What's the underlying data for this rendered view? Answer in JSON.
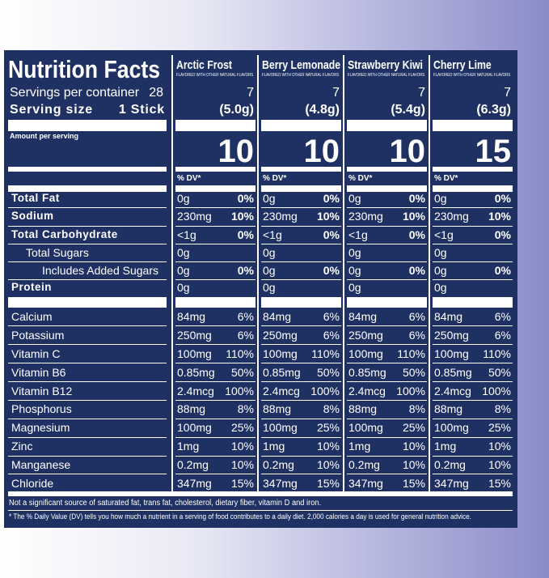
{
  "title": "Nutrition Facts",
  "servings_label": "Servings per container",
  "servings_value": "28",
  "serving_size_label": "Serving size",
  "serving_size_value": "1 Stick",
  "amount_per_serving": "Amount per serving",
  "dv_header": "% DV*",
  "products": [
    {
      "name": "Arctic Frost",
      "note": "FLAVORED WITH OTHER NATURAL FLAVORS",
      "servings": "7",
      "serving_size": "(5.0g)",
      "calories": "10"
    },
    {
      "name": "Berry Lemonade",
      "note": "FLAVORED WITH OTHER NATURAL FLAVORS",
      "servings": "7",
      "serving_size": "(4.8g)",
      "calories": "10"
    },
    {
      "name": "Strawberry Kiwi",
      "note": "FLAVORED WITH OTHER NATURAL FLAVORS",
      "servings": "7",
      "serving_size": "(5.4g)",
      "calories": "10"
    },
    {
      "name": "Cherry Lime",
      "note": "FLAVORED WITH OTHER NATURAL FLAVORS",
      "servings": "7",
      "serving_size": "(6.3g)",
      "calories": "15"
    }
  ],
  "nutrients": [
    {
      "name": "Total Fat",
      "amounts": [
        "0g",
        "0g",
        "0g",
        "0g"
      ],
      "dv": [
        "0%",
        "0%",
        "0%",
        "0%"
      ]
    },
    {
      "name": "Sodium",
      "amounts": [
        "230mg",
        "230mg",
        "230mg",
        "230mg"
      ],
      "dv": [
        "10%",
        "10%",
        "10%",
        "10%"
      ]
    },
    {
      "name": "Total Carbohydrate",
      "amounts": [
        "<1g",
        "<1g",
        "<1g",
        "<1g"
      ],
      "dv": [
        "0%",
        "0%",
        "0%",
        "0%"
      ]
    },
    {
      "name": "Total Sugars",
      "amounts": [
        "0g",
        "0g",
        "0g",
        "0g"
      ],
      "dv": [
        null,
        null,
        null,
        null
      ]
    },
    {
      "name": "Includes Added Sugars",
      "amounts": [
        "0g",
        "0g",
        "0g",
        "0g"
      ],
      "dv": [
        "0%",
        "0%",
        "0%",
        "0%"
      ]
    },
    {
      "name": "Protein",
      "amounts": [
        "0g",
        "0g",
        "0g",
        "0g"
      ],
      "dv": [
        null,
        null,
        null,
        null
      ]
    },
    {
      "name": "Calcium",
      "amounts": [
        "84mg",
        "84mg",
        "84mg",
        "84mg"
      ],
      "dv": [
        "6%",
        "6%",
        "6%",
        "6%"
      ]
    },
    {
      "name": "Potassium",
      "amounts": [
        "250mg",
        "250mg",
        "250mg",
        "250mg"
      ],
      "dv": [
        "6%",
        "6%",
        "6%",
        "6%"
      ]
    },
    {
      "name": "Vitamin C",
      "amounts": [
        "100mg",
        "100mg",
        "100mg",
        "100mg"
      ],
      "dv": [
        "110%",
        "110%",
        "110%",
        "110%"
      ]
    },
    {
      "name": "Vitamin B6",
      "amounts": [
        "0.85mg",
        "0.85mg",
        "0.85mg",
        "0.85mg"
      ],
      "dv": [
        "50%",
        "50%",
        "50%",
        "50%"
      ]
    },
    {
      "name": "Vitamin B12",
      "amounts": [
        "2.4mcg",
        "2.4mcg",
        "2.4mcg",
        "2.4mcg"
      ],
      "dv": [
        "100%",
        "100%",
        "100%",
        "100%"
      ]
    },
    {
      "name": "Phosphorus",
      "amounts": [
        "88mg",
        "88mg",
        "88mg",
        "88mg"
      ],
      "dv": [
        "8%",
        "8%",
        "8%",
        "8%"
      ]
    },
    {
      "name": "Magnesium",
      "amounts": [
        "100mg",
        "100mg",
        "100mg",
        "100mg"
      ],
      "dv": [
        "25%",
        "25%",
        "25%",
        "25%"
      ]
    },
    {
      "name": "Zinc",
      "amounts": [
        "1mg",
        "1mg",
        "1mg",
        "1mg"
      ],
      "dv": [
        "10%",
        "10%",
        "10%",
        "10%"
      ]
    },
    {
      "name": "Manganese",
      "amounts": [
        "0.2mg",
        "0.2mg",
        "0.2mg",
        "0.2mg"
      ],
      "dv": [
        "10%",
        "10%",
        "10%",
        "10%"
      ]
    },
    {
      "name": "Chloride",
      "amounts": [
        "347mg",
        "347mg",
        "347mg",
        "347mg"
      ],
      "dv": [
        "15%",
        "15%",
        "15%",
        "15%"
      ]
    }
  ],
  "footnote_1": "Not a significant source of saturated fat, trans fat, cholesterol, dietary fiber, vitamin D and iron.",
  "footnote_2": "* The % Daily Value (DV) tells you how much a nutrient in a serving of food contributes to a daily diet. 2,000 calories a day is used for general nutrition advice."
}
